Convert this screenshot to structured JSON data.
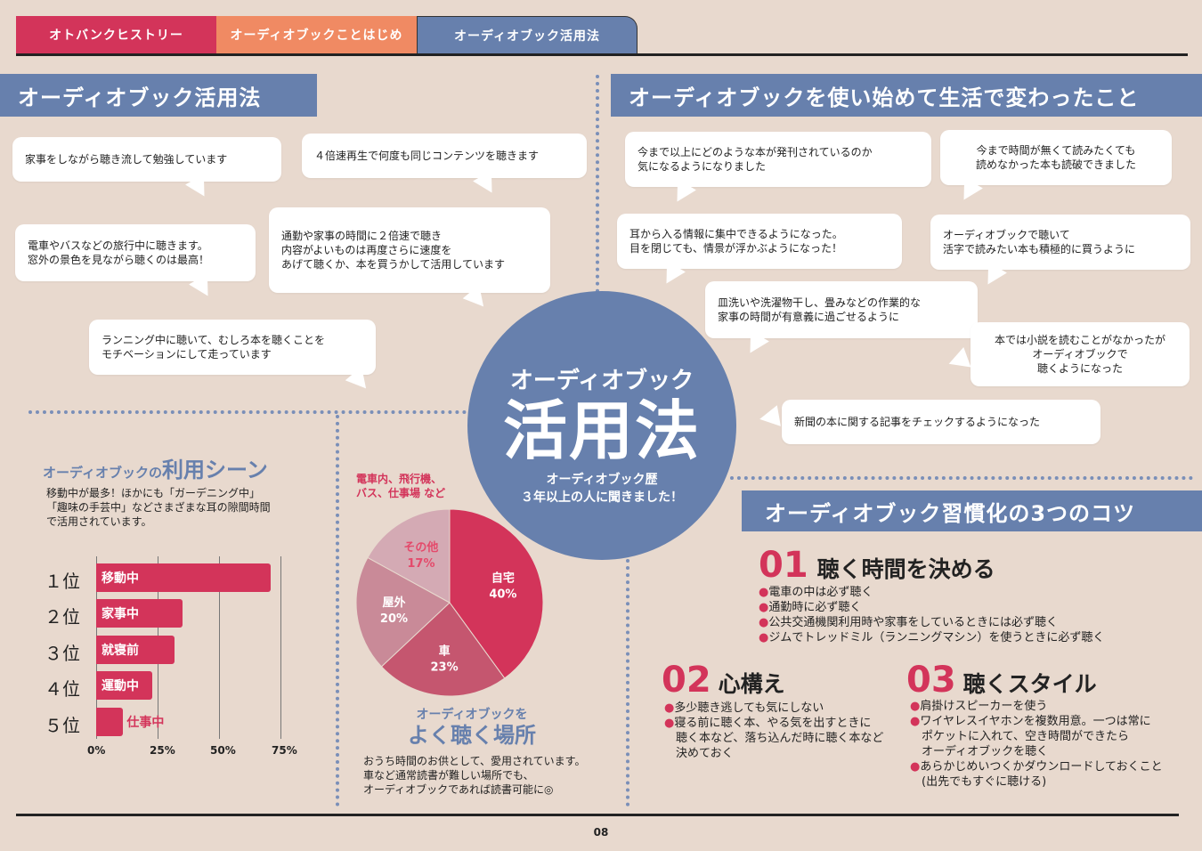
{
  "tabs": [
    {
      "label": "オトバンクヒストリー"
    },
    {
      "label": "オーディオブックことはじめ"
    },
    {
      "label": "オーディオブック活用法"
    }
  ],
  "left_header": "オーディオブック活用法",
  "right_header": "オーディオブックを使い始めて生活で変わったこと",
  "left_bubbles": [
    {
      "lines": [
        "家事をしながら聴き流して勉強しています"
      ]
    },
    {
      "lines": [
        "４倍速再生で何度も同じコンテンツを聴きます"
      ]
    },
    {
      "lines": [
        "電車やバスなどの旅行中に聴きます。",
        "窓外の景色を見ながら聴くのは最高！"
      ]
    },
    {
      "lines": [
        "通勤や家事の時間に２倍速で聴き",
        "内容がよいものは再度さらに速度を",
        "あげて聴くか、本を買うかして活用しています"
      ]
    },
    {
      "lines": [
        "ランニング中に聴いて、むしろ本を聴くことを",
        "モチベーションにして走っています"
      ]
    }
  ],
  "right_bubbles": [
    {
      "lines": [
        "今まで以上にどのような本が発刊されているのか",
        "気になるようになりました"
      ]
    },
    {
      "lines": [
        "今まで時間が無くて読みたくても",
        "読めなかった本も読破できました"
      ]
    },
    {
      "lines": [
        "耳から入る情報に集中できるようになった。",
        "目を閉じても、情景が浮かぶようになった！"
      ]
    },
    {
      "lines": [
        "オーディオブックで聴いて",
        "活字で読みたい本も積極的に買うように"
      ]
    },
    {
      "lines": [
        "皿洗いや洗濯物干し、畳みなどの作業的な",
        "家事の時間が有意義に過ごせるように"
      ]
    },
    {
      "lines": [
        "本では小説を読むことがなかったが",
        "オーディオブックで",
        "聴くようになった"
      ]
    },
    {
      "lines": [
        "新聞の本に関する記事をチェックするようになった"
      ]
    }
  ],
  "center": {
    "title_top": "オーディオブック",
    "title_main": "活用法",
    "sub1": "オーディオブック歴",
    "sub2": "３年以上の人に聞きました！"
  },
  "scene": {
    "title_pre": "オーディオブックの",
    "title_main": "利用シーン",
    "desc": [
      "移動中が最多！ほかにも「ガーデニング中」",
      "「趣味の手芸中」などさまざまな耳の隙間時間",
      "で活用されています。"
    ],
    "ranks": [
      "１位",
      "２位",
      "３位",
      "４位",
      "５位"
    ]
  },
  "place": {
    "note": [
      "電車内、飛行機、",
      "バス、仕事場 など"
    ],
    "title_top": "オーディオブックを",
    "title_main": "よく聴く場所",
    "desc": [
      "おうち時間のお供として、愛用されています。",
      "車など通常読書が難しい場所でも、",
      "オーディオブックであれば読書可能に◎"
    ]
  },
  "tips": {
    "header": "オーディオブック習慣化の3つのコツ",
    "t1": {
      "num": "01",
      "title": "聴く時間を決める",
      "items": [
        "電車の中は必ず聴く",
        "通勤時に必ず聴く",
        "公共交通機関利用時や家事をしているときには必ず聴く",
        "ジムでトレッドミル（ランニングマシン）を使うときに必ず聴く"
      ]
    },
    "t2": {
      "num": "02",
      "title": "心構え",
      "items": [
        "多少聴き逃しても気にしない",
        "寝る前に聴く本、やる気を出すときに",
        "聴く本など、落ち込んだ時に聴く本など",
        "決めておく"
      ],
      "bullets": [
        true,
        true,
        false,
        false
      ]
    },
    "t3": {
      "num": "03",
      "title": "聴くスタイル",
      "items": [
        "肩掛けスピーカーを使う",
        "ワイヤレスイヤホンを複数用意。一つは常に",
        "ポケットに入れて、空き時間ができたら",
        "オーディオブックを聴く",
        "あらかじめいつくかダウンロードしておくこと",
        "(出先でもすぐに聴ける)"
      ],
      "bullets": [
        true,
        true,
        false,
        false,
        true,
        false
      ]
    }
  },
  "page_number": "08",
  "colors": {
    "pink": "#d3345a",
    "orange": "#f08a63",
    "blue": "#6780ad",
    "bg": "#e8d9ce",
    "pie_dark": "#d3345a",
    "pie_mid": "#c5566f",
    "pie_light": "#c98a98",
    "pie_pale": "#d4aab4"
  },
  "chart_data": [
    {
      "type": "bar",
      "orientation": "horizontal",
      "categories": [
        "移動中",
        "家事中",
        "就寝前",
        "運動中",
        "仕事中"
      ],
      "values": [
        71,
        35,
        32,
        23,
        11
      ],
      "xticks": [
        "0%",
        "25%",
        "50%",
        "75%"
      ],
      "xlim": [
        0,
        75
      ]
    },
    {
      "type": "pie",
      "labels": [
        "自宅",
        "車",
        "屋外",
        "その他"
      ],
      "values": [
        40,
        23,
        20,
        17
      ],
      "value_labels": [
        "40%",
        "23%",
        "20%",
        "17%"
      ],
      "colors": [
        "#d3345a",
        "#c5566f",
        "#c98a98",
        "#d4aab4"
      ]
    }
  ]
}
